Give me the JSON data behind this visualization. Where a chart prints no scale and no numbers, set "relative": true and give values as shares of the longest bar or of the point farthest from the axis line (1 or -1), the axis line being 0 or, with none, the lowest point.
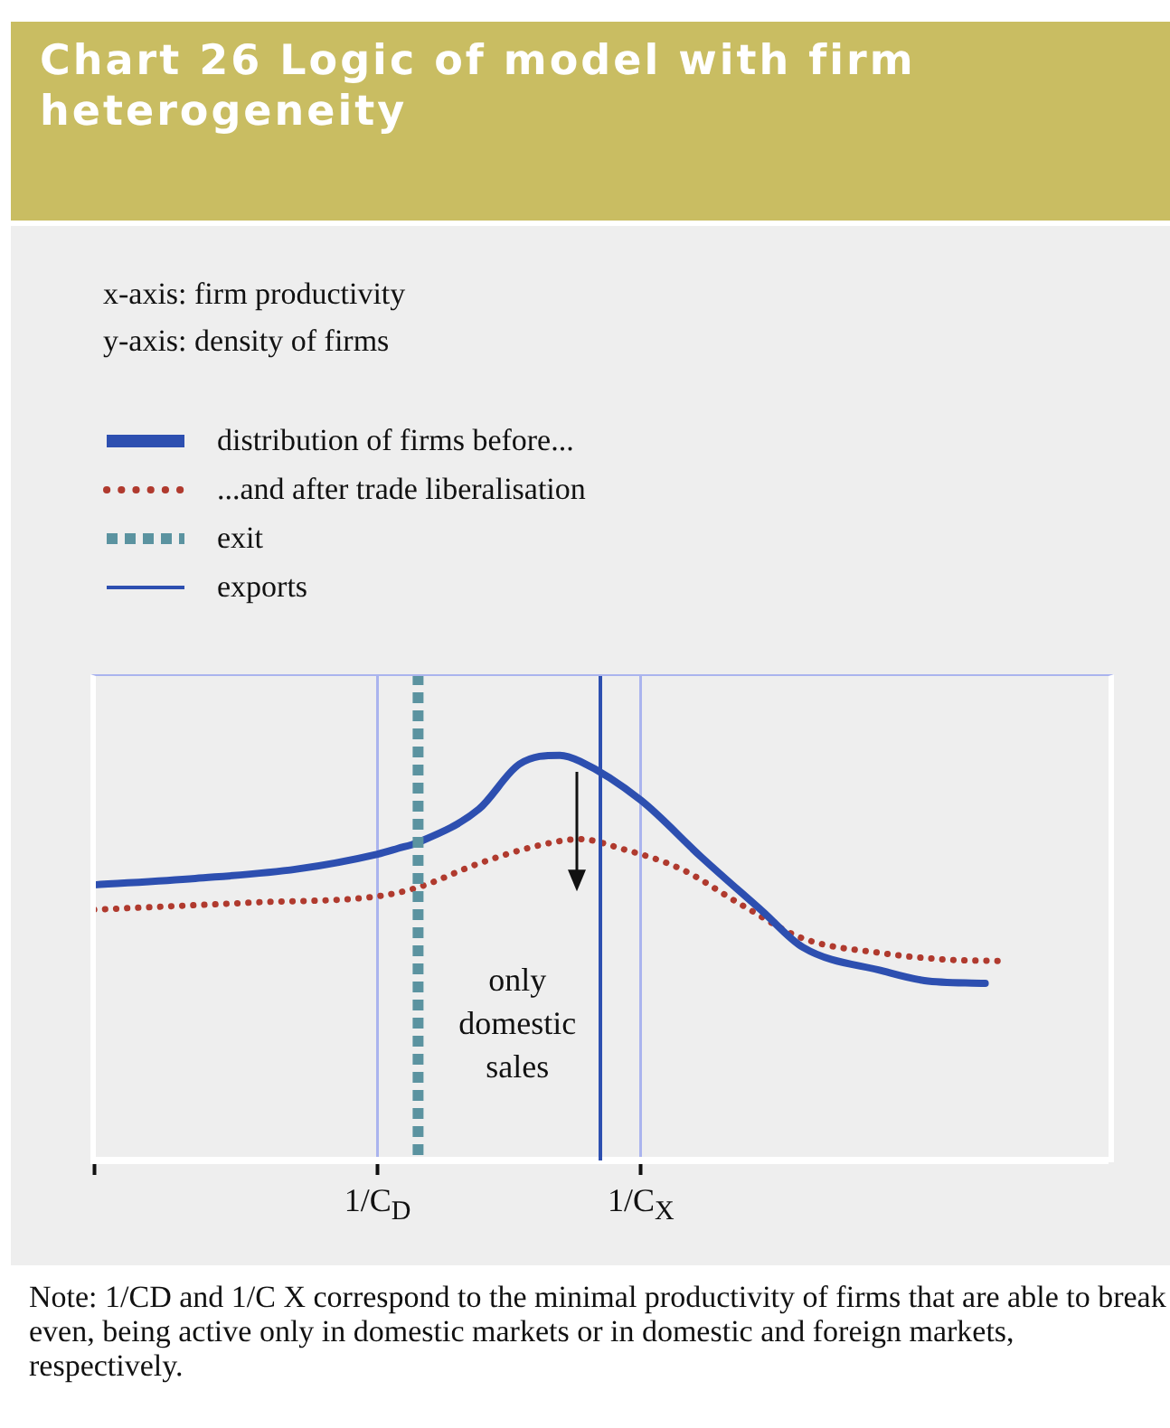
{
  "chart_data": {
    "type": "line",
    "title": "Chart 26 Logic of model with firm heterogeneity",
    "relative": true,
    "categories": [
      null,
      null,
      null,
      null,
      null,
      null,
      null,
      null,
      null,
      null,
      null,
      null,
      null,
      null,
      "1/C$_{D}$",
      null,
      null,
      null,
      null,
      null,
      null,
      null,
      null,
      null,
      null,
      null,
      null,
      "1/C$_{X}$",
      null,
      null,
      null,
      null,
      null,
      null,
      null,
      null,
      null,
      null,
      null,
      null,
      null,
      null,
      null,
      null,
      null,
      null,
      null,
      null,
      null,
      null,
      null
    ],
    "grid": "x",
    "legend": "top left",
    "marker": "none",
    "series": [
      {
        "name": "distribution of firms before...",
        "color": "#2d4fb0",
        "line_style": "solid",
        "values": [
          0.68,
          null,
          null,
          null,
          null,
          0.696,
          null,
          null,
          null,
          null,
          0.719,
          null,
          null,
          null,
          0.756,
          0.77,
          0.785,
          null,
          null,
          0.867,
          null,
          0.978,
          null,
          1.0,
          0.985,
          null,
          null,
          0.889,
          null,
          null,
          0.748,
          null,
          null,
          0.615,
          null,
          0.526,
          null,
          null,
          null,
          0.467,
          null,
          0.444,
          null,
          null,
          0.437,
          null,
          null,
          null,
          null,
          null,
          null
        ]
      },
      {
        "name": "...and after trade liberalisation",
        "color": "#b03a2e",
        "line_style": "dotted",
        "values": [
          0.619,
          null,
          null,
          null,
          null,
          null,
          null,
          null,
          0.637,
          null,
          null,
          null,
          null,
          null,
          0.652,
          null,
          0.674,
          null,
          null,
          0.733,
          null,
          null,
          0.778,
          null,
          0.793,
          null,
          0.77,
          null,
          null,
          0.719,
          null,
          null,
          0.63,
          null,
          null,
          0.548,
          null,
          null,
          null,
          0.511,
          null,
          null,
          0.496,
          null,
          null,
          0.492,
          null,
          null,
          null,
          null,
          null
        ]
      }
    ],
    "annotations": [
      "x-axis: firm productivity",
      "y-axis: density of firms",
      "exit",
      "exports",
      "only domestic sales",
      "Note: 1/CD and 1/C X correspond to the minimal productivity of firms that are able to break even, being active only in domestic markets or in domestic and foreign markets, respectively."
    ]
  }
}
